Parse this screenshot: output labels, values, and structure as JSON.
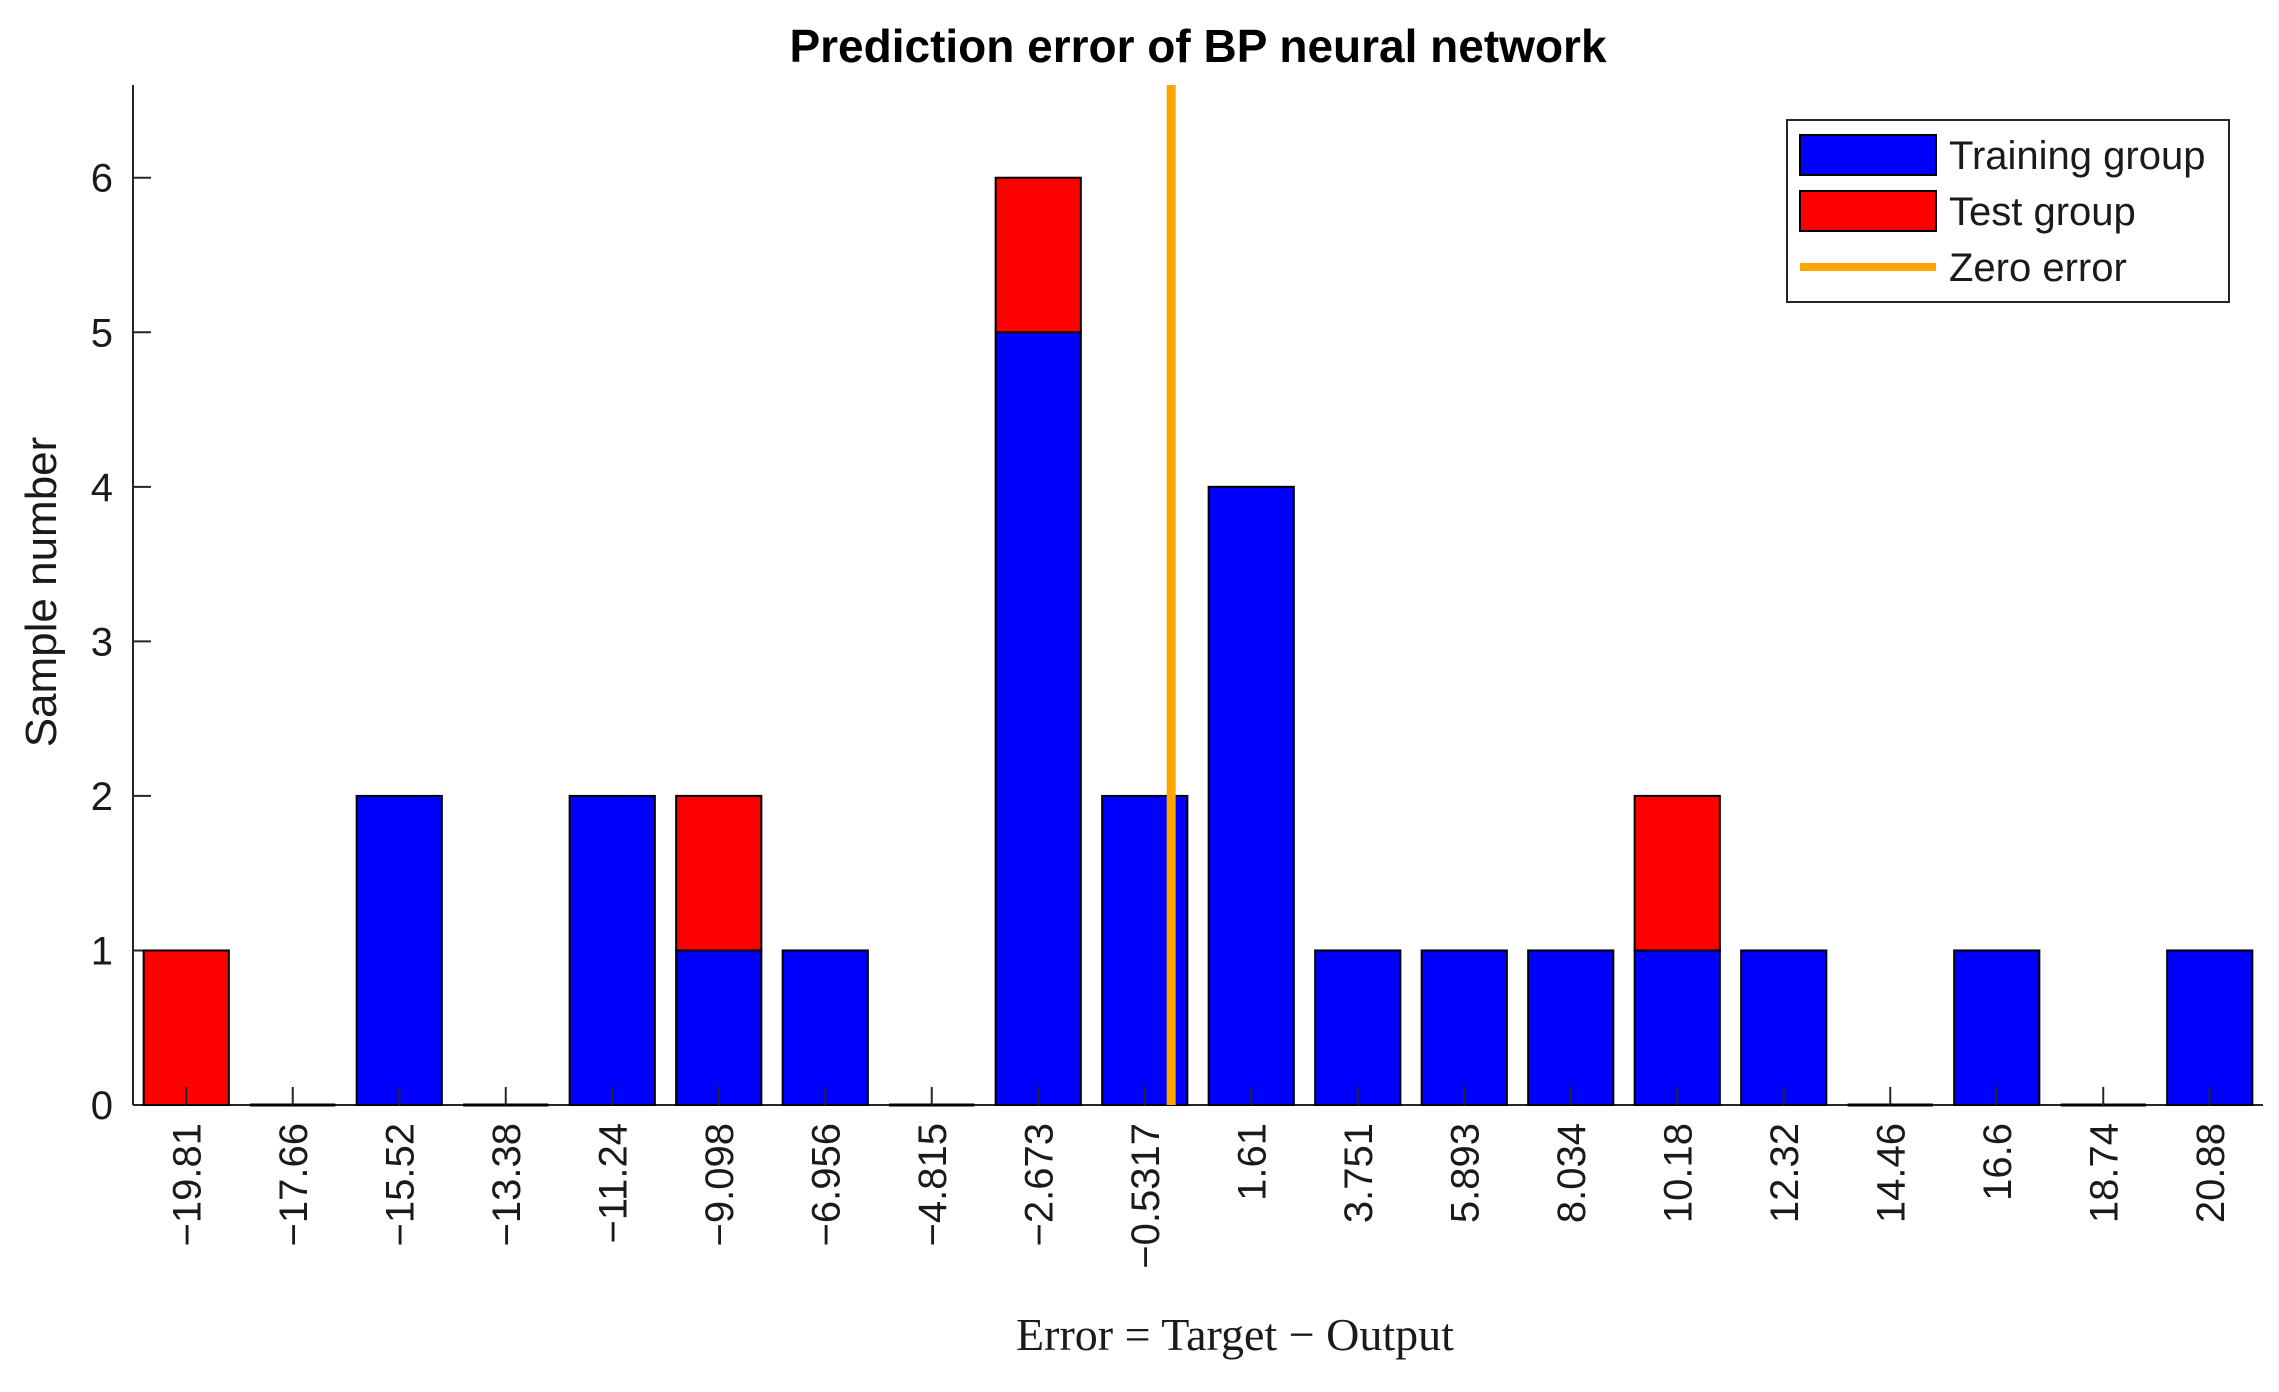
{
  "chart_data": {
    "type": "bar",
    "stacked": true,
    "title": "Prediction error of BP neural network",
    "xlabel": "Error = Target − Output",
    "ylabel": "Sample number",
    "categories": [
      "−19.81",
      "−17.66",
      "−15.52",
      "−13.38",
      "−11.24",
      "−9.098",
      "−6.956",
      "−4.815",
      "−2.673",
      "−0.5317",
      "1.61",
      "3.751",
      "5.893",
      "8.034",
      "10.18",
      "12.32",
      "14.46",
      "16.6",
      "18.74",
      "20.88"
    ],
    "series": [
      {
        "name": "Training group",
        "color": "#0000ff",
        "values": [
          0,
          0,
          2,
          0,
          2,
          1,
          1,
          0,
          5,
          2,
          4,
          1,
          1,
          1,
          1,
          1,
          0,
          1,
          0,
          1
        ]
      },
      {
        "name": "Test group",
        "color": "#ff0000",
        "values": [
          1,
          0,
          0,
          0,
          0,
          1,
          0,
          0,
          1,
          0,
          0,
          0,
          0,
          0,
          1,
          0,
          0,
          0,
          0,
          0
        ]
      }
    ],
    "reference_line": {
      "name": "Zero error",
      "x": 0,
      "color": "#ffa500"
    },
    "ylim": [
      0,
      6.6
    ],
    "yticks": [
      0,
      1,
      2,
      3,
      4,
      5,
      6
    ],
    "legend_position": "top-right",
    "grid": false
  }
}
